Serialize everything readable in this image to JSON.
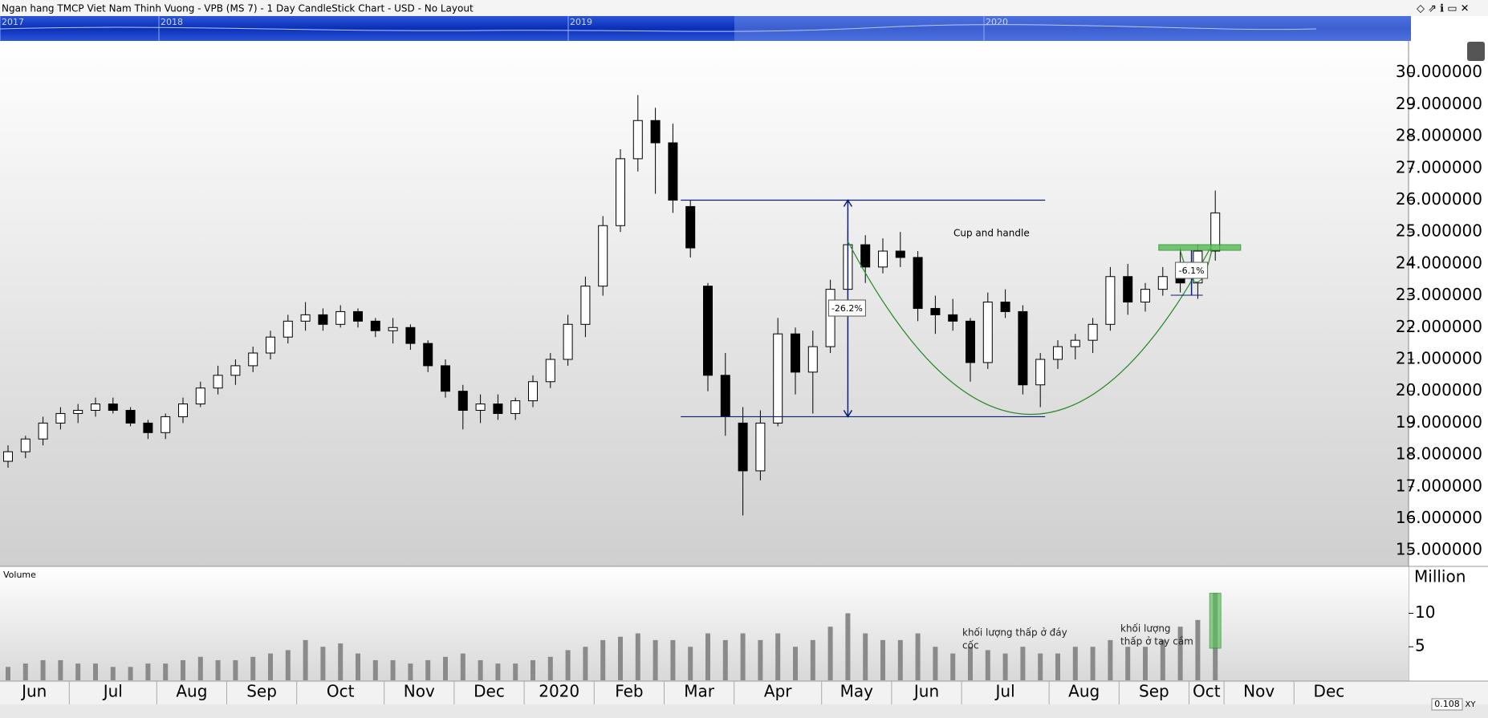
{
  "window_title": "Ngan hang TMCP Viet Nam Thinh Vuong - VPB (MS 7) - 1 Day CandleStick Chart - USD - No Layout",
  "navigator_years": [
    "2017",
    "2018",
    "2019",
    "2020"
  ],
  "status": [
    "0.108",
    "XY"
  ],
  "chart_data": [
    {
      "type": "candlestick",
      "categories": [
        "Jun",
        null,
        null,
        null,
        "Jul",
        null,
        null,
        null,
        null,
        "Aug",
        null,
        null,
        null,
        "Sep",
        null,
        null,
        null,
        "Oct",
        null,
        null,
        null,
        null,
        "Nov",
        null,
        null,
        null,
        "Dec",
        null,
        null,
        null,
        "2020",
        null,
        null,
        null,
        "Feb",
        null,
        null,
        null,
        "Mar",
        null,
        null,
        null,
        "Apr",
        null,
        null,
        null,
        null,
        "May",
        null,
        null,
        null,
        "Jun",
        null,
        null,
        null,
        "Jul",
        null,
        null,
        null,
        null,
        "Aug",
        null,
        null,
        null,
        "Sep",
        null,
        null,
        null,
        "Oct",
        null,
        "Nov",
        null,
        null,
        null,
        "Dec",
        null,
        null,
        null
      ],
      "open": [
        17.8,
        18.1,
        18.5,
        19.0,
        19.3,
        19.4,
        19.6,
        19.4,
        19.0,
        18.7,
        19.2,
        19.6,
        20.1,
        20.5,
        20.8,
        21.2,
        21.7,
        22.2,
        22.4,
        22.1,
        22.5,
        22.2,
        21.9,
        22.0,
        21.5,
        20.8,
        20.0,
        19.4,
        19.6,
        19.3,
        19.7,
        20.3,
        21.0,
        22.1,
        23.3,
        25.2,
        27.3,
        28.5,
        27.8,
        25.8,
        23.3,
        20.5,
        19.0,
        17.5,
        19.0,
        21.8,
        20.6,
        21.4,
        23.2,
        24.6,
        23.9,
        24.4,
        24.2,
        22.6,
        22.4,
        22.2,
        20.9,
        22.8,
        22.5,
        20.2,
        21.0,
        21.4,
        21.6,
        22.1,
        23.6,
        22.8,
        23.2,
        23.6,
        23.4,
        24.4,
        null,
        null,
        null,
        null,
        null,
        null,
        null,
        null
      ],
      "high": [
        18.3,
        18.6,
        19.2,
        19.5,
        19.6,
        19.8,
        19.8,
        19.5,
        19.1,
        19.3,
        19.8,
        20.3,
        20.8,
        21.0,
        21.4,
        21.9,
        22.4,
        22.8,
        22.6,
        22.7,
        22.6,
        22.3,
        22.3,
        22.1,
        21.6,
        21.0,
        20.2,
        19.9,
        19.9,
        19.8,
        20.5,
        21.2,
        22.4,
        23.6,
        25.5,
        27.6,
        29.3,
        28.9,
        28.4,
        26.0,
        23.4,
        21.2,
        19.5,
        19.4,
        22.3,
        22.0,
        21.9,
        23.5,
        25.1,
        24.9,
        24.8,
        25.0,
        24.4,
        23.0,
        22.9,
        22.3,
        23.1,
        23.2,
        22.7,
        21.2,
        21.6,
        21.8,
        22.3,
        23.9,
        24.0,
        23.4,
        23.9,
        24.5,
        24.6,
        26.3,
        null,
        null,
        null,
        null,
        null,
        null,
        null,
        null
      ],
      "low": [
        17.6,
        17.9,
        18.3,
        18.8,
        19.0,
        19.2,
        19.3,
        18.9,
        18.5,
        18.5,
        19.0,
        19.5,
        19.9,
        20.2,
        20.6,
        21.0,
        21.5,
        21.9,
        21.9,
        22.0,
        22.0,
        21.7,
        21.5,
        21.3,
        20.6,
        19.8,
        18.8,
        19.0,
        19.1,
        19.1,
        19.5,
        20.1,
        20.8,
        21.7,
        23.0,
        25.0,
        26.9,
        26.2,
        25.6,
        24.2,
        20.0,
        18.6,
        16.1,
        17.2,
        18.9,
        19.9,
        19.3,
        21.2,
        23.0,
        23.4,
        23.7,
        23.9,
        22.2,
        21.8,
        21.9,
        20.3,
        20.7,
        22.3,
        19.9,
        19.5,
        20.7,
        21.0,
        21.2,
        21.9,
        22.4,
        22.5,
        23.0,
        23.1,
        22.9,
        24.1,
        null,
        null,
        null,
        null,
        null,
        null,
        null,
        null
      ],
      "close": [
        18.1,
        18.5,
        19.0,
        19.3,
        19.4,
        19.6,
        19.4,
        19.0,
        18.7,
        19.2,
        19.6,
        20.1,
        20.5,
        20.8,
        21.2,
        21.7,
        22.2,
        22.4,
        22.1,
        22.5,
        22.2,
        21.9,
        22.0,
        21.5,
        20.8,
        20.0,
        19.4,
        19.6,
        19.3,
        19.7,
        20.3,
        21.0,
        22.1,
        23.3,
        25.2,
        27.3,
        28.5,
        27.8,
        26.0,
        24.5,
        20.5,
        19.2,
        17.5,
        19.0,
        21.8,
        20.6,
        21.4,
        23.2,
        24.6,
        23.9,
        24.4,
        24.2,
        22.6,
        22.4,
        22.2,
        20.9,
        22.8,
        22.5,
        20.2,
        21.0,
        21.4,
        21.6,
        22.1,
        23.6,
        22.8,
        23.2,
        23.6,
        23.4,
        24.4,
        25.6,
        null,
        null,
        null,
        null,
        null,
        null,
        null,
        null
      ],
      "ylim": [
        14.5,
        31
      ],
      "yticks": [
        {
          "value": 15,
          "label": "15.000000"
        },
        {
          "value": 16,
          "label": "16.000000"
        },
        {
          "value": 17,
          "label": "17.000000"
        },
        {
          "value": 18,
          "label": "18.000000"
        },
        {
          "value": 19,
          "label": "19.000000"
        },
        {
          "value": 20,
          "label": "20.000000"
        },
        {
          "value": 21,
          "label": "21.000000"
        },
        {
          "value": 22,
          "label": "22.000000"
        },
        {
          "value": 23,
          "label": "23.000000"
        },
        {
          "value": 24,
          "label": "24.000000"
        },
        {
          "value": 25,
          "label": "25.000000"
        },
        {
          "value": 26,
          "label": "26.000000"
        },
        {
          "value": 27,
          "label": "27.000000"
        },
        {
          "value": 28,
          "label": "28.000000"
        },
        {
          "value": 29,
          "label": "29.000000"
        },
        {
          "value": 30,
          "label": "30.000000"
        }
      ],
      "levels": [
        26,
        19.2
      ],
      "annotations": {
        "pattern": "Cup and handle",
        "drop": "-26.2%",
        "handle": "-6.1%"
      }
    },
    {
      "type": "bar",
      "title": "Volume",
      "y_label": "Million",
      "color": "#8a8a8a",
      "values": [
        2,
        2.5,
        3,
        3,
        2.5,
        2.5,
        2,
        2,
        2.5,
        2.5,
        3,
        3.5,
        3,
        3,
        3.5,
        4,
        4.5,
        6,
        5,
        5.5,
        4,
        3,
        3,
        2.5,
        3,
        3.5,
        4,
        3,
        2.5,
        2.5,
        3,
        3.5,
        4.5,
        5,
        6,
        6.5,
        7,
        6,
        6,
        5,
        7,
        6,
        7,
        6,
        7,
        5,
        6,
        8,
        10,
        7,
        6,
        6,
        7,
        5,
        4,
        5,
        4.5,
        4,
        5,
        4,
        4,
        5,
        5,
        6,
        5,
        5,
        6,
        8,
        9,
        13,
        null,
        null,
        null,
        null,
        null,
        null,
        null,
        null
      ],
      "ylim": [
        0,
        17
      ],
      "yticks": [
        5,
        10
      ],
      "annotations": [
        [
          "khối lượng thấp ở đáy",
          "cốc"
        ],
        [
          "khối lượng",
          "thấp ở tay cầm"
        ]
      ]
    }
  ]
}
